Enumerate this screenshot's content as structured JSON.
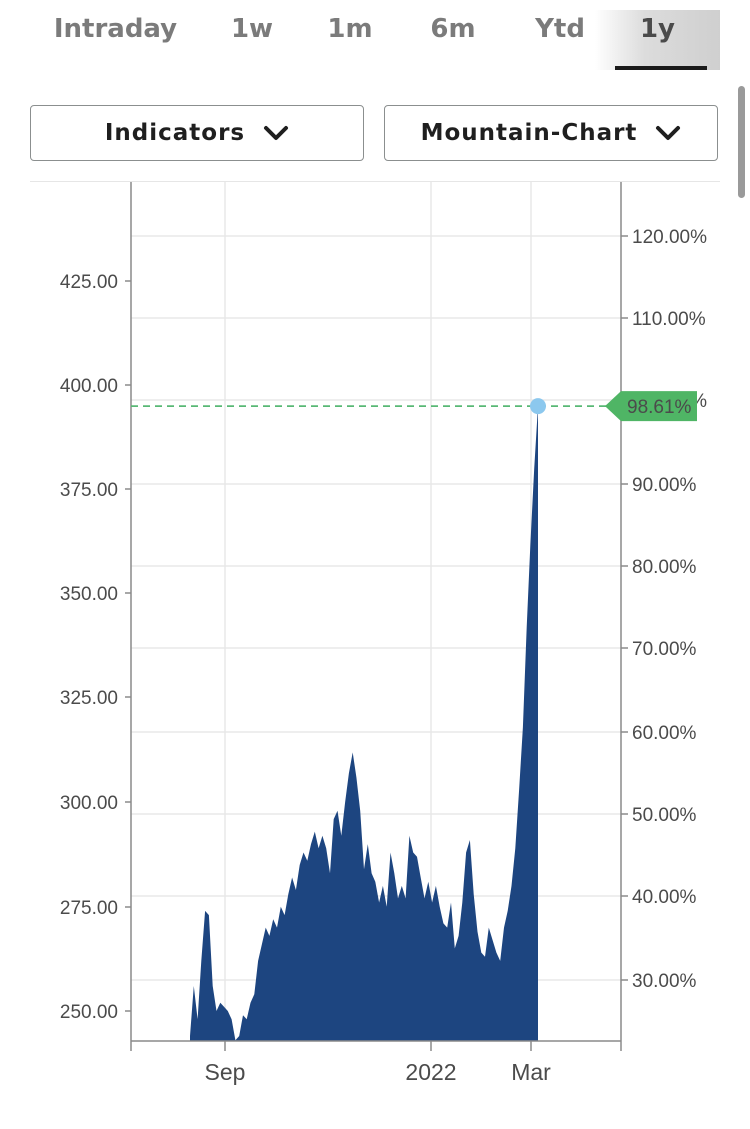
{
  "tabs": [
    {
      "label": "Intraday",
      "active": false
    },
    {
      "label": "1w",
      "active": false
    },
    {
      "label": "1m",
      "active": false
    },
    {
      "label": "6m",
      "active": false
    },
    {
      "label": "Ytd",
      "active": false
    },
    {
      "label": "1y",
      "active": true
    }
  ],
  "toolbar": {
    "indicators_label": "Indicators",
    "chart_type_label": "Mountain-Chart"
  },
  "colors": {
    "area_fill": "#1d4580",
    "reference_line": "#58b875",
    "badge": "#4fb565",
    "marker": "#8cc8ee"
  },
  "chart_data": {
    "type": "area",
    "x_ticks": [
      "Sep",
      "2022",
      "Mar"
    ],
    "left_ticks": [
      "425.00",
      "400.00",
      "375.00",
      "350.00",
      "325.00",
      "300.00",
      "275.00",
      "250.00"
    ],
    "right_ticks": [
      "120.00%",
      "110.00%",
      "100.00%",
      "90.00%",
      "80.00%",
      "70.00%",
      "60.00%",
      "50.00%",
      "40.00%",
      "30.00%"
    ],
    "current_badge": "98.61%",
    "left_range": [
      243,
      438
    ],
    "series_note": "Price in left-axis units, chronological over roughly 1 year (Jul → early Mar)",
    "values": [
      244,
      256,
      248,
      262,
      274,
      273,
      256,
      250,
      252,
      251,
      250,
      248,
      243,
      244,
      249,
      248,
      252,
      254,
      262,
      266,
      270,
      268,
      272,
      270,
      275,
      273,
      278,
      282,
      279,
      285,
      288,
      286,
      290,
      293,
      289,
      292,
      289,
      283,
      296,
      298,
      292,
      300,
      307,
      312,
      306,
      298,
      284,
      290,
      283,
      281,
      276,
      280,
      275,
      288,
      283,
      277,
      280,
      277,
      292,
      288,
      287,
      282,
      277,
      281,
      276,
      280,
      275,
      271,
      270,
      276,
      265,
      268,
      276,
      288,
      291,
      278,
      269,
      264,
      263,
      270,
      267,
      264,
      262,
      270,
      274,
      280,
      289,
      303,
      318,
      342,
      362,
      380,
      395
    ]
  }
}
